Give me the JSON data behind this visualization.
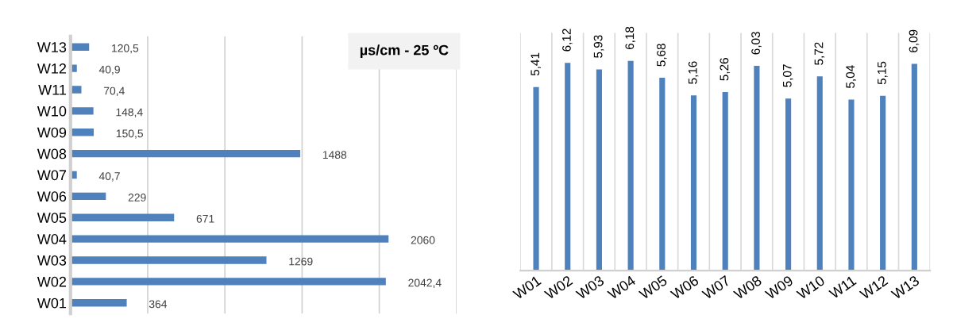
{
  "chart_data": [
    {
      "type": "bar",
      "orientation": "horizontal",
      "title": "µs/cm - 25 ºC",
      "categories": [
        "W13",
        "W12",
        "W11",
        "W10",
        "W09",
        "W08",
        "W07",
        "W06",
        "W05",
        "W04",
        "W03",
        "W02",
        "W01"
      ],
      "values": [
        120.5,
        40.9,
        70.4,
        148.4,
        150.5,
        1488,
        40.7,
        229,
        671,
        2060,
        1269,
        2042.4,
        364
      ],
      "value_labels": [
        "120,5",
        "40,9",
        "70,4",
        "148,4",
        "150,5",
        "1488",
        "40,7",
        "229",
        "671",
        "2060",
        "1269",
        "2042,4",
        "364"
      ],
      "color": "#4f81bd",
      "xlim": [
        0,
        2500
      ],
      "xticks": [
        {
          "value": 0,
          "label": null
        },
        {
          "value": 500,
          "label": null
        },
        {
          "value": 1000,
          "label": null
        },
        {
          "value": 1500,
          "label": null
        },
        {
          "value": 2000,
          "label": null
        },
        {
          "value": 2500,
          "label": null
        }
      ],
      "grid": "x",
      "tick_labels": "y"
    },
    {
      "type": "bar",
      "categories": [
        "W01",
        "W02",
        "W03",
        "W04",
        "W05",
        "W06",
        "W07",
        "W08",
        "W09",
        "W10",
        "W11",
        "W12",
        "W13"
      ],
      "values": [
        5.41,
        6.12,
        5.93,
        6.18,
        5.68,
        5.16,
        5.26,
        6.03,
        5.07,
        5.72,
        5.04,
        5.15,
        6.09
      ],
      "value_labels": [
        "5,41",
        "6,12",
        "5,93",
        "6,18",
        "5,68",
        "5,16",
        "5,26",
        "6,03",
        "5,07",
        "5,72",
        "5,04",
        "5,15",
        "6,09"
      ],
      "color": "#4f81bd",
      "ylim": [
        0,
        7
      ],
      "grid": "x",
      "tick_labels": "x"
    }
  ]
}
